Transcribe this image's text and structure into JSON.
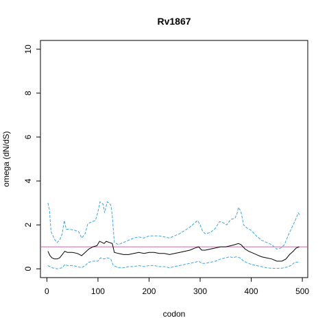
{
  "chart_data": {
    "type": "line",
    "title": "Rv1867",
    "xlabel": "codon",
    "ylabel": "omega (dN/dS)",
    "xlim": [
      -12.6,
      510.6
    ],
    "ylim": [
      -0.4,
      10.4
    ],
    "x_ticks": [
      0,
      100,
      200,
      300,
      400,
      500
    ],
    "y_ticks": [
      0,
      2,
      4,
      6,
      8,
      10
    ],
    "grid": false,
    "legend": "none",
    "reference_line": {
      "y": 1,
      "color": "#cc66aa"
    },
    "series": [
      {
        "role": "upper",
        "style": "dashed",
        "color": "#3aa6e0",
        "points": [
          [
            2,
            3.0
          ],
          [
            5,
            2.7
          ],
          [
            8,
            1.7
          ],
          [
            12,
            1.5
          ],
          [
            16,
            1.3
          ],
          [
            20,
            1.2
          ],
          [
            25,
            1.3
          ],
          [
            30,
            1.6
          ],
          [
            34,
            2.2
          ],
          [
            38,
            1.8
          ],
          [
            45,
            1.8
          ],
          [
            55,
            1.75
          ],
          [
            62,
            1.7
          ],
          [
            68,
            1.4
          ],
          [
            75,
            1.6
          ],
          [
            80,
            2.05
          ],
          [
            88,
            2.15
          ],
          [
            95,
            2.2
          ],
          [
            100,
            2.6
          ],
          [
            104,
            3.05
          ],
          [
            110,
            2.95
          ],
          [
            113,
            2.55
          ],
          [
            118,
            3.05
          ],
          [
            122,
            3.0
          ],
          [
            126,
            2.85
          ],
          [
            128,
            2.4
          ],
          [
            132,
            1.2
          ],
          [
            140,
            1.1
          ],
          [
            150,
            1.2
          ],
          [
            160,
            1.3
          ],
          [
            170,
            1.4
          ],
          [
            180,
            1.45
          ],
          [
            190,
            1.4
          ],
          [
            200,
            1.5
          ],
          [
            210,
            1.5
          ],
          [
            220,
            1.5
          ],
          [
            230,
            1.45
          ],
          [
            240,
            1.4
          ],
          [
            250,
            1.5
          ],
          [
            260,
            1.6
          ],
          [
            270,
            1.75
          ],
          [
            280,
            1.9
          ],
          [
            290,
            2.1
          ],
          [
            295,
            2.2
          ],
          [
            300,
            2.0
          ],
          [
            305,
            1.7
          ],
          [
            310,
            1.6
          ],
          [
            320,
            1.65
          ],
          [
            330,
            1.85
          ],
          [
            338,
            2.15
          ],
          [
            345,
            2.1
          ],
          [
            352,
            2.0
          ],
          [
            360,
            2.25
          ],
          [
            368,
            2.3
          ],
          [
            372,
            2.5
          ],
          [
            375,
            2.8
          ],
          [
            380,
            2.6
          ],
          [
            385,
            2.0
          ],
          [
            392,
            1.85
          ],
          [
            400,
            1.75
          ],
          [
            410,
            1.5
          ],
          [
            420,
            1.3
          ],
          [
            430,
            1.2
          ],
          [
            440,
            1.1
          ],
          [
            450,
            0.9
          ],
          [
            458,
            0.95
          ],
          [
            465,
            1.1
          ],
          [
            472,
            1.5
          ],
          [
            480,
            1.9
          ],
          [
            487,
            2.25
          ],
          [
            492,
            2.55
          ],
          [
            495,
            2.45
          ]
        ]
      },
      {
        "role": "estimate",
        "style": "solid",
        "color": "#000000",
        "points": [
          [
            2,
            0.8
          ],
          [
            6,
            0.6
          ],
          [
            10,
            0.5
          ],
          [
            15,
            0.45
          ],
          [
            20,
            0.45
          ],
          [
            25,
            0.5
          ],
          [
            30,
            0.65
          ],
          [
            35,
            0.8
          ],
          [
            40,
            0.75
          ],
          [
            50,
            0.75
          ],
          [
            60,
            0.7
          ],
          [
            68,
            0.6
          ],
          [
            75,
            0.75
          ],
          [
            82,
            0.9
          ],
          [
            90,
            1.0
          ],
          [
            98,
            1.05
          ],
          [
            103,
            1.25
          ],
          [
            108,
            1.2
          ],
          [
            112,
            1.15
          ],
          [
            116,
            1.25
          ],
          [
            122,
            1.2
          ],
          [
            128,
            1.15
          ],
          [
            132,
            0.75
          ],
          [
            140,
            0.7
          ],
          [
            150,
            0.65
          ],
          [
            160,
            0.65
          ],
          [
            170,
            0.7
          ],
          [
            180,
            0.75
          ],
          [
            190,
            0.7
          ],
          [
            200,
            0.75
          ],
          [
            210,
            0.75
          ],
          [
            220,
            0.7
          ],
          [
            230,
            0.7
          ],
          [
            240,
            0.65
          ],
          [
            250,
            0.7
          ],
          [
            260,
            0.75
          ],
          [
            270,
            0.8
          ],
          [
            280,
            0.85
          ],
          [
            290,
            0.95
          ],
          [
            297,
            1.0
          ],
          [
            303,
            0.85
          ],
          [
            310,
            0.85
          ],
          [
            320,
            0.9
          ],
          [
            330,
            0.95
          ],
          [
            340,
            1.0
          ],
          [
            350,
            1.0
          ],
          [
            360,
            1.05
          ],
          [
            368,
            1.1
          ],
          [
            375,
            1.15
          ],
          [
            380,
            1.1
          ],
          [
            388,
            0.9
          ],
          [
            395,
            0.8
          ],
          [
            400,
            0.75
          ],
          [
            410,
            0.65
          ],
          [
            420,
            0.55
          ],
          [
            430,
            0.5
          ],
          [
            440,
            0.45
          ],
          [
            450,
            0.35
          ],
          [
            460,
            0.35
          ],
          [
            468,
            0.45
          ],
          [
            475,
            0.65
          ],
          [
            482,
            0.8
          ],
          [
            488,
            0.95
          ],
          [
            494,
            1.0
          ]
        ]
      },
      {
        "role": "lower",
        "style": "dashed",
        "color": "#3aa6e0",
        "points": [
          [
            2,
            0.15
          ],
          [
            6,
            0.1
          ],
          [
            10,
            0.05
          ],
          [
            20,
            0.0
          ],
          [
            30,
            0.05
          ],
          [
            35,
            0.2
          ],
          [
            40,
            0.15
          ],
          [
            50,
            0.15
          ],
          [
            60,
            0.1
          ],
          [
            68,
            0.05
          ],
          [
            75,
            0.15
          ],
          [
            82,
            0.3
          ],
          [
            90,
            0.35
          ],
          [
            100,
            0.35
          ],
          [
            105,
            0.5
          ],
          [
            112,
            0.45
          ],
          [
            118,
            0.5
          ],
          [
            125,
            0.45
          ],
          [
            130,
            0.15
          ],
          [
            140,
            0.05
          ],
          [
            150,
            0.05
          ],
          [
            160,
            0.1
          ],
          [
            170,
            0.1
          ],
          [
            180,
            0.15
          ],
          [
            190,
            0.1
          ],
          [
            200,
            0.15
          ],
          [
            210,
            0.15
          ],
          [
            220,
            0.1
          ],
          [
            230,
            0.1
          ],
          [
            240,
            0.05
          ],
          [
            250,
            0.1
          ],
          [
            260,
            0.15
          ],
          [
            270,
            0.2
          ],
          [
            280,
            0.25
          ],
          [
            290,
            0.3
          ],
          [
            297,
            0.35
          ],
          [
            303,
            0.25
          ],
          [
            310,
            0.25
          ],
          [
            320,
            0.3
          ],
          [
            330,
            0.35
          ],
          [
            340,
            0.45
          ],
          [
            350,
            0.5
          ],
          [
            358,
            0.55
          ],
          [
            365,
            0.5
          ],
          [
            370,
            0.55
          ],
          [
            378,
            0.5
          ],
          [
            385,
            0.35
          ],
          [
            395,
            0.25
          ],
          [
            400,
            0.2
          ],
          [
            410,
            0.15
          ],
          [
            420,
            0.1
          ],
          [
            430,
            0.05
          ],
          [
            440,
            0.02
          ],
          [
            450,
            0.02
          ],
          [
            460,
            0.03
          ],
          [
            470,
            0.08
          ],
          [
            478,
            0.15
          ],
          [
            485,
            0.3
          ],
          [
            490,
            0.3
          ],
          [
            495,
            0.28
          ]
        ]
      }
    ]
  }
}
